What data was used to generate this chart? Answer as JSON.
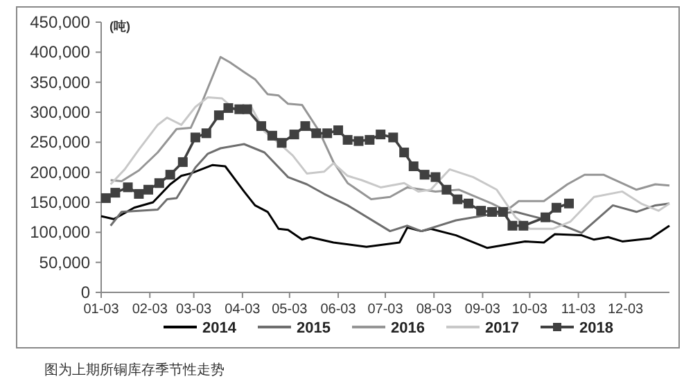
{
  "chart_data": {
    "type": "line",
    "ylabel": "(吨)",
    "xlim": [
      "--01-03",
      "--12-31"
    ],
    "ylim": [
      0,
      450000
    ],
    "xticks": [
      {
        "value": "--01-03",
        "label": "01-03"
      },
      {
        "value": "--02-03",
        "label": "02-03"
      },
      {
        "value": "--03-03",
        "label": "03-03"
      },
      {
        "value": "--04-03",
        "label": "04-03"
      },
      {
        "value": "--05-03",
        "label": "05-03"
      },
      {
        "value": "--06-03",
        "label": "06-03"
      },
      {
        "value": "--07-03",
        "label": "07-03"
      },
      {
        "value": "--08-03",
        "label": "08-03"
      },
      {
        "value": "--09-03",
        "label": "09-03"
      },
      {
        "value": "--10-03",
        "label": "10-03"
      },
      {
        "value": "--11-03",
        "label": "11-03"
      },
      {
        "value": "--12-03",
        "label": "12-03"
      }
    ],
    "yticks": [
      {
        "value": 0,
        "label": "0"
      },
      {
        "value": 50000,
        "label": "50,000"
      },
      {
        "value": 100000,
        "label": "100,000"
      },
      {
        "value": 150000,
        "label": "150,000"
      },
      {
        "value": 200000,
        "label": "200,000"
      },
      {
        "value": 250000,
        "label": "250,000"
      },
      {
        "value": 300000,
        "label": "300,000"
      },
      {
        "value": 350000,
        "label": "350,000"
      },
      {
        "value": 400000,
        "label": "400,000"
      },
      {
        "value": 450000,
        "label": "450,000"
      }
    ],
    "grid": false,
    "legend": "bottom",
    "line_style": "solid",
    "annotations": [
      "图为上期所铜库存季节性走势"
    ],
    "series": [
      {
        "name": "2014",
        "color": "#000000",
        "x": [
          "--01-03",
          "--01-11",
          "--01-24",
          "--02-05",
          "--02-16",
          "--02-23",
          "--03-01",
          "--03-15",
          "--03-23",
          "--04-04",
          "--04-11",
          "--04-19",
          "--04-26",
          "--05-02",
          "--05-11",
          "--05-16",
          "--05-31",
          "--06-21",
          "--07-12",
          "--07-17",
          "--07-26",
          "--08-01",
          "--08-17",
          "--09-06",
          "--09-30",
          "--10-12",
          "--10-19",
          "--11-05",
          "--11-13",
          "--11-22",
          "--12-01",
          "--12-19",
          "--12-31"
        ],
        "values": [
          127000,
          122000,
          141000,
          150000,
          180000,
          194000,
          198000,
          212000,
          210000,
          168000,
          145000,
          134000,
          106000,
          104000,
          88000,
          92000,
          83000,
          76000,
          83000,
          108000,
          102000,
          106000,
          95000,
          74000,
          85000,
          83000,
          97000,
          95000,
          88000,
          92000,
          85000,
          90000,
          111000
        ]
      },
      {
        "name": "2015",
        "color": "#6e6e6e",
        "x": [
          "--01-09",
          "--01-16",
          "--01-27",
          "--02-08",
          "--02-14",
          "--02-20",
          "--03-04",
          "--03-12",
          "--03-20",
          "--04-04",
          "--04-17",
          "--05-02",
          "--05-14",
          "--05-25",
          "--06-09",
          "--07-06",
          "--07-17",
          "--07-26",
          "--08-17",
          "--09-06",
          "--09-24",
          "--10-18",
          "--11-05",
          "--11-25",
          "--12-10",
          "--12-22",
          "--12-31"
        ],
        "values": [
          111000,
          134000,
          136000,
          138000,
          155000,
          157000,
          208000,
          231000,
          240000,
          247000,
          233000,
          192000,
          180000,
          164000,
          145000,
          102000,
          111000,
          102000,
          120000,
          129000,
          134000,
          118000,
          99000,
          145000,
          134000,
          145000,
          148000
        ]
      },
      {
        "name": "2016",
        "color": "#959595",
        "x": [
          "--01-09",
          "--01-16",
          "--01-27",
          "--02-08",
          "--02-20",
          "--03-01",
          "--03-06",
          "--03-20",
          "--03-26",
          "--04-04",
          "--04-11",
          "--04-19",
          "--04-26",
          "--05-02",
          "--05-11",
          "--05-22",
          "--05-31",
          "--06-09",
          "--06-24",
          "--07-06",
          "--07-17",
          "--08-04",
          "--08-19",
          "--09-09",
          "--09-18",
          "--09-26",
          "--10-12",
          "--10-27",
          "--11-07",
          "--11-19",
          "--12-10",
          "--12-22",
          "--12-31"
        ],
        "values": [
          187000,
          185000,
          203000,
          233000,
          272000,
          274000,
          302000,
          392000,
          383000,
          367000,
          355000,
          330000,
          328000,
          314000,
          312000,
          268000,
          217000,
          182000,
          155000,
          159000,
          175000,
          168000,
          171000,
          148000,
          136000,
          152000,
          152000,
          180000,
          196000,
          196000,
          171000,
          180000,
          178000
        ]
      },
      {
        "name": "2017",
        "color": "#c8c8c8",
        "x": [
          "--01-09",
          "--01-18",
          "--01-27",
          "--02-08",
          "--02-14",
          "--02-23",
          "--03-04",
          "--03-12",
          "--03-21",
          "--03-30",
          "--04-08",
          "--04-17",
          "--04-26",
          "--05-05",
          "--05-14",
          "--05-25",
          "--05-31",
          "--06-09",
          "--06-18",
          "--06-30",
          "--07-15",
          "--07-24",
          "--08-01",
          "--08-13",
          "--08-28",
          "--09-12",
          "--09-24",
          "--10-03",
          "--10-18",
          "--10-29",
          "--11-13",
          "--12-01",
          "--12-13",
          "--12-24",
          "--12-31"
        ],
        "values": [
          180000,
          205000,
          238000,
          279000,
          291000,
          279000,
          309000,
          325000,
          323000,
          302000,
          312000,
          268000,
          249000,
          228000,
          198000,
          201000,
          215000,
          194000,
          187000,
          175000,
          182000,
          168000,
          171000,
          205000,
          192000,
          171000,
          125000,
          106000,
          106000,
          118000,
          159000,
          168000,
          148000,
          136000,
          148000
        ]
      },
      {
        "name": "2018",
        "color": "#404040",
        "marker": "square",
        "x": [
          "--01-06",
          "--01-12",
          "--01-20",
          "--01-27",
          "--02-02",
          "--02-09",
          "--02-16",
          "--02-24",
          "--03-04",
          "--03-11",
          "--03-19",
          "--03-25",
          "--04-01",
          "--04-06",
          "--04-15",
          "--04-22",
          "--04-28",
          "--05-06",
          "--05-13",
          "--05-20",
          "--05-27",
          "--06-03",
          "--06-09",
          "--06-16",
          "--06-23",
          "--06-30",
          "--07-08",
          "--07-15",
          "--07-21",
          "--07-28",
          "--08-04",
          "--08-11",
          "--08-18",
          "--08-25",
          "--09-02",
          "--09-09",
          "--09-16",
          "--09-22",
          "--09-29",
          "--10-13",
          "--10-20",
          "--10-28"
        ],
        "values": [
          157000,
          166000,
          175000,
          164000,
          171000,
          182000,
          196000,
          217000,
          258000,
          265000,
          295000,
          307000,
          305000,
          305000,
          277000,
          261000,
          249000,
          263000,
          277000,
          265000,
          265000,
          270000,
          254000,
          252000,
          254000,
          263000,
          258000,
          233000,
          210000,
          196000,
          192000,
          171000,
          155000,
          148000,
          136000,
          134000,
          134000,
          111000,
          111000,
          125000,
          141000,
          148000
        ]
      }
    ]
  }
}
